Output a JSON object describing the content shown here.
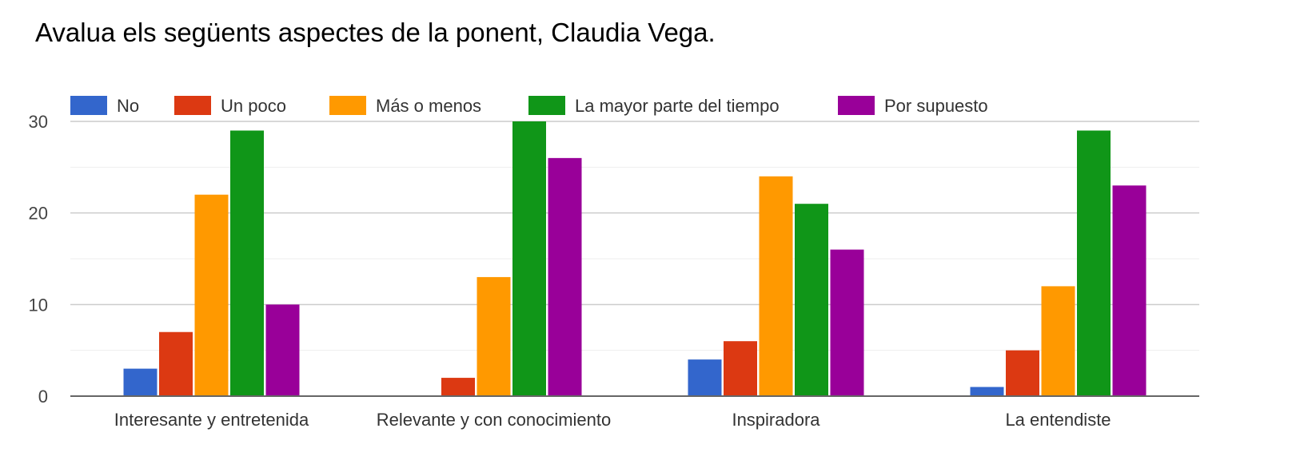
{
  "title": "Avalua els següents aspectes de la ponent, Claudia Vega.",
  "chart_data": {
    "type": "bar",
    "categories": [
      "Interesante y entretenida",
      "Relevante y con conocimiento",
      "Inspiradora",
      "La entendiste"
    ],
    "series": [
      {
        "name": "No",
        "color": "#3366cc",
        "values": [
          3,
          0,
          4,
          1
        ]
      },
      {
        "name": "Un poco",
        "color": "#dc3912",
        "values": [
          7,
          2,
          6,
          5
        ]
      },
      {
        "name": "Más o menos",
        "color": "#ff9900",
        "values": [
          22,
          13,
          24,
          12
        ]
      },
      {
        "name": "La mayor parte del tiempo",
        "color": "#109618",
        "values": [
          29,
          30,
          21,
          29
        ]
      },
      {
        "name": "Por supuesto",
        "color": "#990099",
        "values": [
          10,
          26,
          16,
          23
        ]
      }
    ],
    "yticks": [
      0,
      10,
      20,
      30
    ],
    "ylim": [
      0,
      30
    ],
    "grid": true,
    "legend_position": "top-left"
  }
}
